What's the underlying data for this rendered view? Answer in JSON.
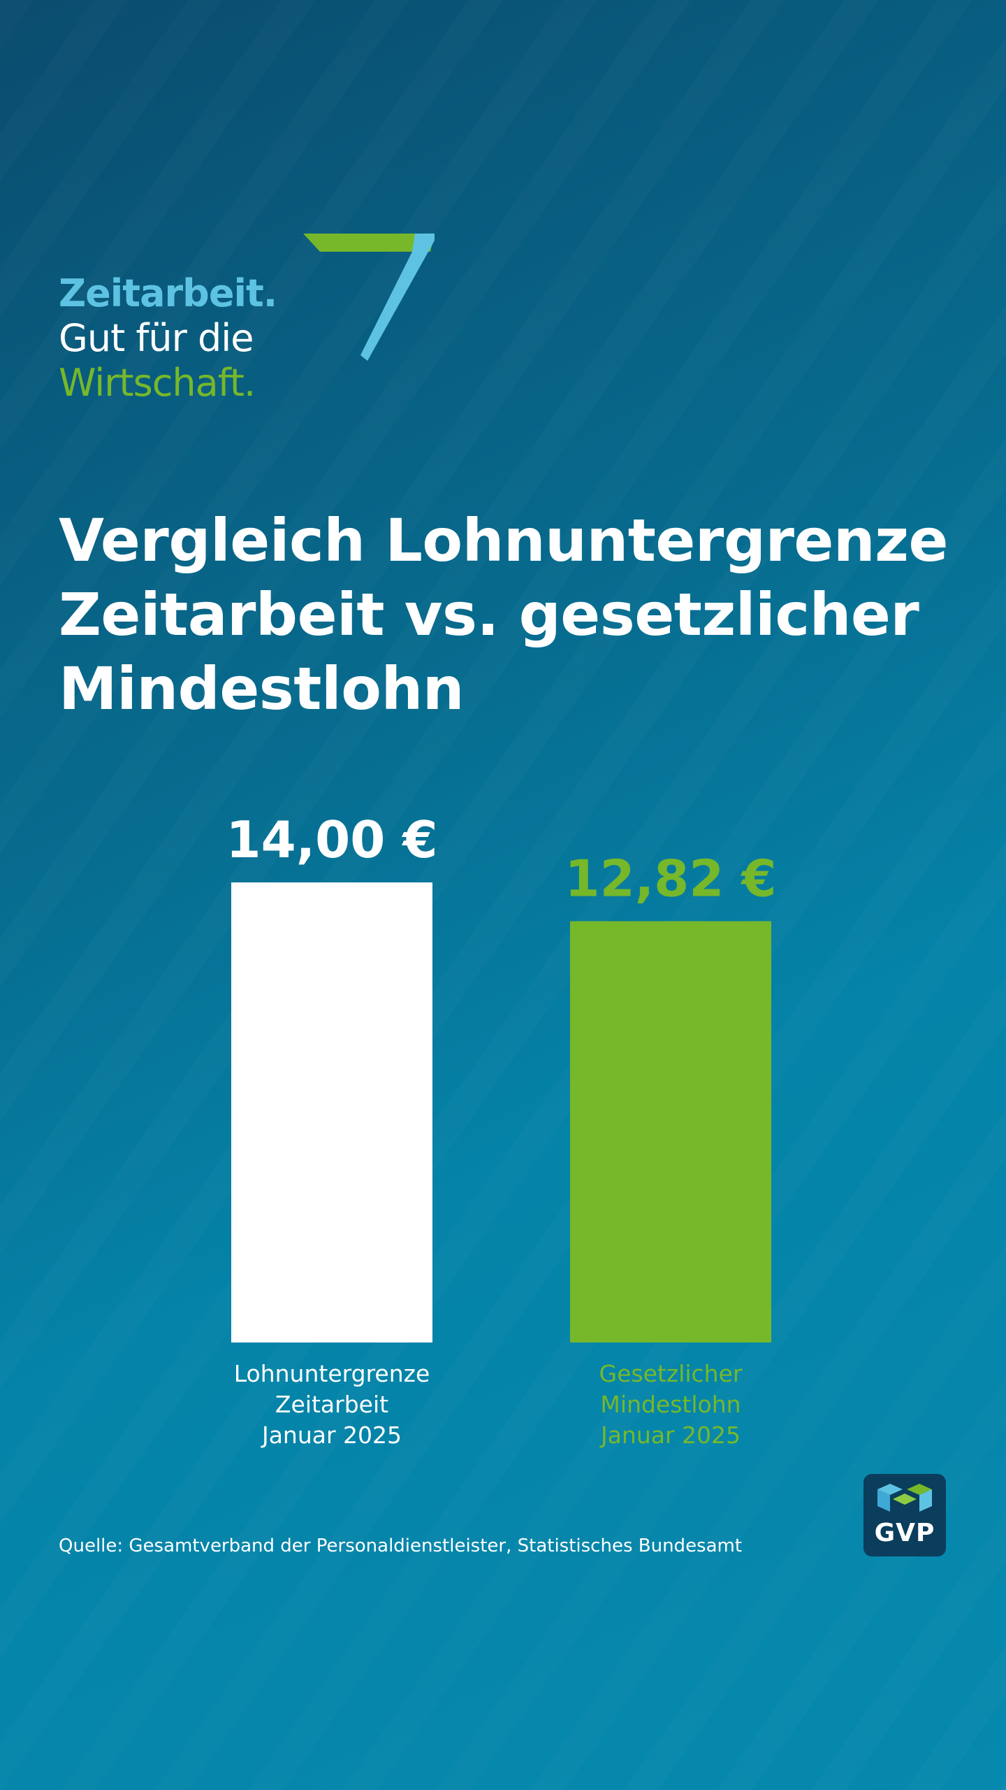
{
  "logo": {
    "line1": "Zeitarbeit.",
    "line2": "Gut für die",
    "line3": "Wirtschaft.",
    "seven_icon": "seven-icon"
  },
  "title_lines": [
    "Vergleich Lohnuntergrenze",
    "Zeitarbeit vs. gesetzlicher",
    "Mindestlohn"
  ],
  "colors": {
    "accent_blue": "#5ec3e3",
    "accent_green": "#76b82a",
    "white": "#ffffff",
    "badge_dark": "#0b3d5c"
  },
  "chart_data": {
    "type": "bar",
    "categories": [
      [
        "Lohnuntergrenze",
        "Zeitarbeit",
        "Januar 2025"
      ],
      [
        "Gesetzlicher",
        "Mindestlohn",
        "Januar 2025"
      ]
    ],
    "values": [
      14.0,
      12.82
    ],
    "value_labels": [
      "14,00 €",
      "12,82 €"
    ],
    "bar_colors": [
      "#ffffff",
      "#76b82a"
    ],
    "label_colors": [
      "#ffffff",
      "#76b82a"
    ],
    "title": "Vergleich Lohnuntergrenze Zeitarbeit vs. gesetzlicher Mindestlohn",
    "xlabel": "",
    "ylabel": "",
    "ylim": [
      0,
      14
    ],
    "grid": false
  },
  "source": "Quelle: Gesamtverband der Personaldienstleister, Statistisches Bundesamt",
  "badge": {
    "text": "GVP",
    "icon": "gvp-logo-icon"
  }
}
